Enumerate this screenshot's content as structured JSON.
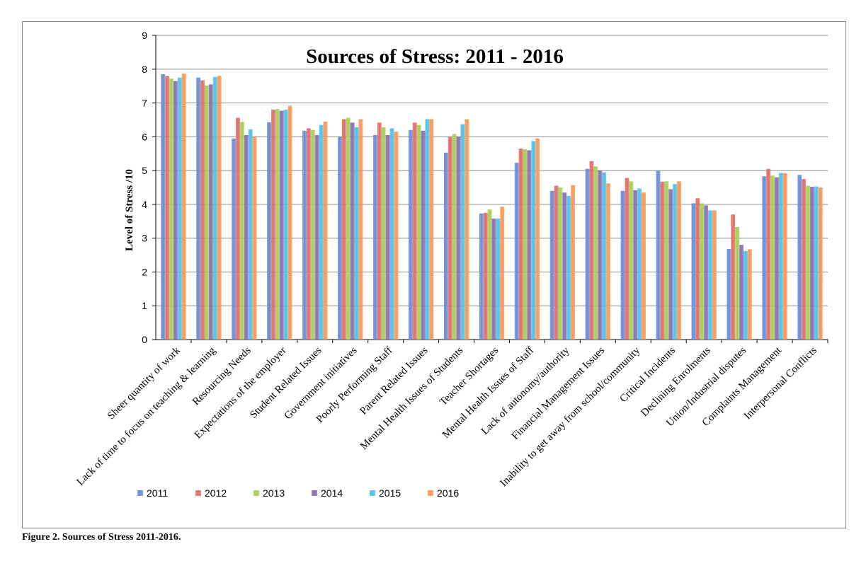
{
  "caption": "Figure 2. Sources of Stress 2011-2016.",
  "chart_data": {
    "type": "bar",
    "title": "Sources of Stress: 2011 - 2016",
    "xlabel": "",
    "ylabel": "Level of Stress /10",
    "ylim": [
      0,
      9
    ],
    "yticks": [
      0,
      1,
      2,
      3,
      4,
      5,
      6,
      7,
      8,
      9
    ],
    "grid": true,
    "legend_position": "bottom-left",
    "categories": [
      "Sheer quantity of work",
      "Lack of time to focus on teaching & learning",
      "Resourcing Needs",
      "Expectations of the employer",
      "Student Related Issues",
      "Government initiatives",
      "Poorly Performing Staff",
      "Parent Related Issues",
      "Mental Health Issues of Students",
      "Teacher Shortages",
      "Mental Health Issues of Staff",
      "Lack of autonomy/authority",
      "Financial Management Issues",
      "Inability to get away from school/community",
      "Critical Incidents",
      "Declining Enrolments",
      "Union/Industrial disputes",
      "Complaints Management",
      "Interpersonal Conflicts"
    ],
    "series": [
      {
        "name": "2011",
        "color": "#6f8ed9",
        "values": [
          7.85,
          7.75,
          5.95,
          6.43,
          6.18,
          6.0,
          6.05,
          6.2,
          5.53,
          3.73,
          5.23,
          4.4,
          5.05,
          4.4,
          5.0,
          4.03,
          2.68,
          4.83,
          4.87
        ]
      },
      {
        "name": "2012",
        "color": "#e0706c",
        "values": [
          7.8,
          7.67,
          6.56,
          6.8,
          6.25,
          6.52,
          6.42,
          6.42,
          6.0,
          3.75,
          5.65,
          4.55,
          5.28,
          4.78,
          4.67,
          4.18,
          3.7,
          5.05,
          4.75
        ]
      },
      {
        "name": "2013",
        "color": "#a9cf5a",
        "values": [
          7.72,
          7.52,
          6.44,
          6.82,
          6.2,
          6.56,
          6.28,
          6.35,
          6.08,
          3.85,
          5.63,
          4.5,
          5.12,
          4.68,
          4.68,
          4.03,
          3.33,
          4.85,
          4.55
        ]
      },
      {
        "name": "2014",
        "color": "#8d71b7",
        "values": [
          7.65,
          7.55,
          6.05,
          6.77,
          6.05,
          6.42,
          6.05,
          6.18,
          6.0,
          3.58,
          5.6,
          4.35,
          5.0,
          4.42,
          4.45,
          3.97,
          2.8,
          4.8,
          4.52
        ]
      },
      {
        "name": "2015",
        "color": "#55c2e5",
        "values": [
          7.75,
          7.77,
          6.22,
          6.8,
          6.35,
          6.28,
          6.25,
          6.52,
          6.37,
          3.58,
          5.87,
          4.25,
          4.95,
          4.47,
          4.6,
          3.82,
          2.62,
          4.93,
          4.53
        ]
      },
      {
        "name": "2016",
        "color": "#f79a5a",
        "values": [
          7.87,
          7.8,
          6.0,
          6.92,
          6.45,
          6.52,
          6.15,
          6.52,
          6.52,
          3.93,
          5.95,
          4.57,
          4.62,
          4.35,
          4.68,
          3.82,
          2.67,
          4.92,
          4.5
        ]
      }
    ]
  }
}
